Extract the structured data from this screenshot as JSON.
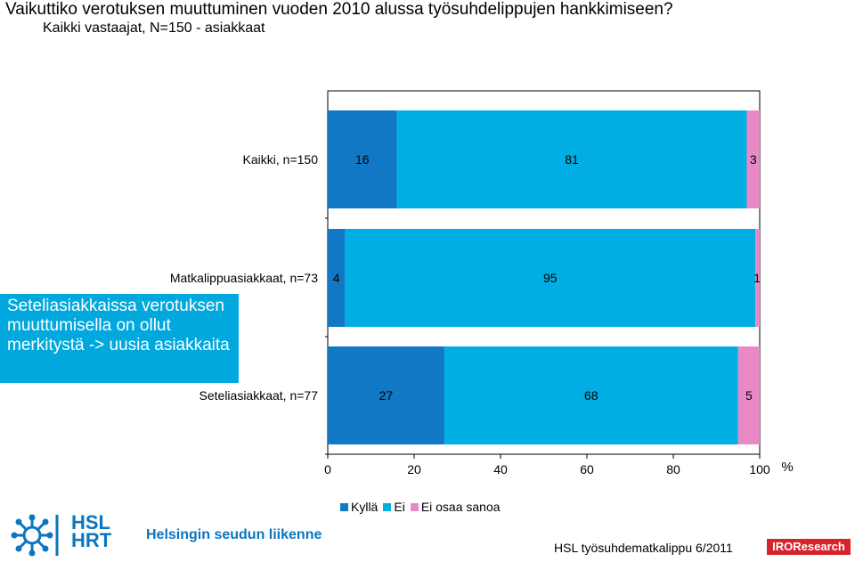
{
  "header": {
    "title": "Vaikuttiko verotuksen muuttuminen vuoden 2010 alussa työsuhdelippujen hankkimiseen?",
    "subtitle": "Kaikki vastaajat, N=150 - asiakkaat"
  },
  "callout": {
    "text": "Seteliasiakkaissa verotuksen muuttumisella on ollut merkitystä -> uusia asiakkaita",
    "color": "#00a8de"
  },
  "chart_data": {
    "type": "bar",
    "orientation": "horizontal",
    "stacked": true,
    "categories": [
      "Kaikki, n=150",
      "Matkalippuasiakkaat, n=73",
      "Seteliasiakkaat, n=77"
    ],
    "series": [
      {
        "name": "Kyllä",
        "values": [
          16,
          4,
          27
        ],
        "color": "#1078c4"
      },
      {
        "name": "Ei",
        "values": [
          81,
          95,
          68
        ],
        "color": "#00aee3"
      },
      {
        "name": "Ei osaa sanoa",
        "values": [
          3,
          1,
          5
        ],
        "color": "#e98ac6"
      }
    ],
    "xlim": [
      0,
      100
    ],
    "xticks": [
      0,
      20,
      40,
      60,
      80,
      100
    ],
    "xunit": "%",
    "legend_position": "bottom",
    "grid": false
  },
  "footer": {
    "source": "HSL työsuhdematkalippu 6/2011",
    "logo_hsl": "HSL",
    "logo_hrt": "HRT",
    "logo_text": "Helsingin seudun liikenne",
    "logo_iro": "IROResearch"
  }
}
